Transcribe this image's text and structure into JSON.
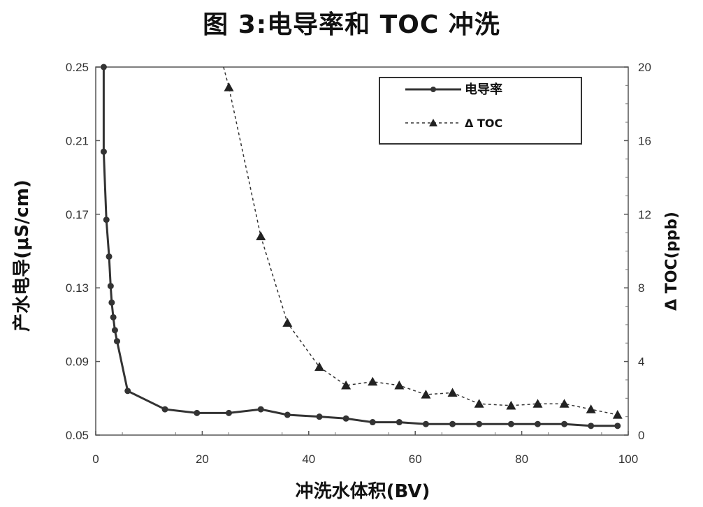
{
  "chart_data": {
    "type": "line",
    "title": "图 3:电导率和 TOC 冲洗",
    "xlabel": "冲洗水体积(BV)",
    "ylabel_left": "产水电导(μS/cm)",
    "ylabel_right": "Δ TOC(ppb)",
    "xlim": [
      0,
      100
    ],
    "ylim_left": [
      0.05,
      0.25
    ],
    "ylim_right": [
      0,
      20
    ],
    "x_ticks": [
      "0",
      "20",
      "40",
      "60",
      "80",
      "100"
    ],
    "y_left_ticks": [
      "0.05",
      "0.09",
      "0.13",
      "0.17",
      "0.21",
      "0.25"
    ],
    "y_right_ticks": [
      "0",
      "4",
      "8",
      "12",
      "16",
      "20"
    ],
    "grid": false,
    "legend_position": "top-right",
    "series": [
      {
        "name": "电导率",
        "axis": "left",
        "marker": "circle",
        "line_style": "solid",
        "color": "#333333",
        "x": [
          1.5,
          1.5,
          2,
          2.5,
          2.8,
          3,
          3.3,
          3.6,
          4,
          6,
          13,
          19,
          25,
          31,
          36,
          42,
          47,
          52,
          57,
          62,
          67,
          72,
          78,
          83,
          88,
          93,
          98
        ],
        "y": [
          0.25,
          0.204,
          0.167,
          0.147,
          0.131,
          0.122,
          0.114,
          0.107,
          0.101,
          0.074,
          0.064,
          0.062,
          0.062,
          0.064,
          0.061,
          0.06,
          0.059,
          0.057,
          0.057,
          0.056,
          0.056,
          0.056,
          0.056,
          0.056,
          0.056,
          0.055,
          0.055
        ]
      },
      {
        "name": "Δ TOC",
        "axis": "right",
        "marker": "triangle",
        "line_style": "dashed",
        "color": "#333333",
        "x": [
          24,
          25,
          31,
          36,
          42,
          47,
          52,
          57,
          62,
          67,
          72,
          78,
          83,
          88,
          93,
          98
        ],
        "y": [
          20,
          18.9,
          10.8,
          6.1,
          3.7,
          2.7,
          2.9,
          2.7,
          2.2,
          2.3,
          1.7,
          1.6,
          1.7,
          1.7,
          1.4,
          1.1
        ]
      }
    ]
  }
}
